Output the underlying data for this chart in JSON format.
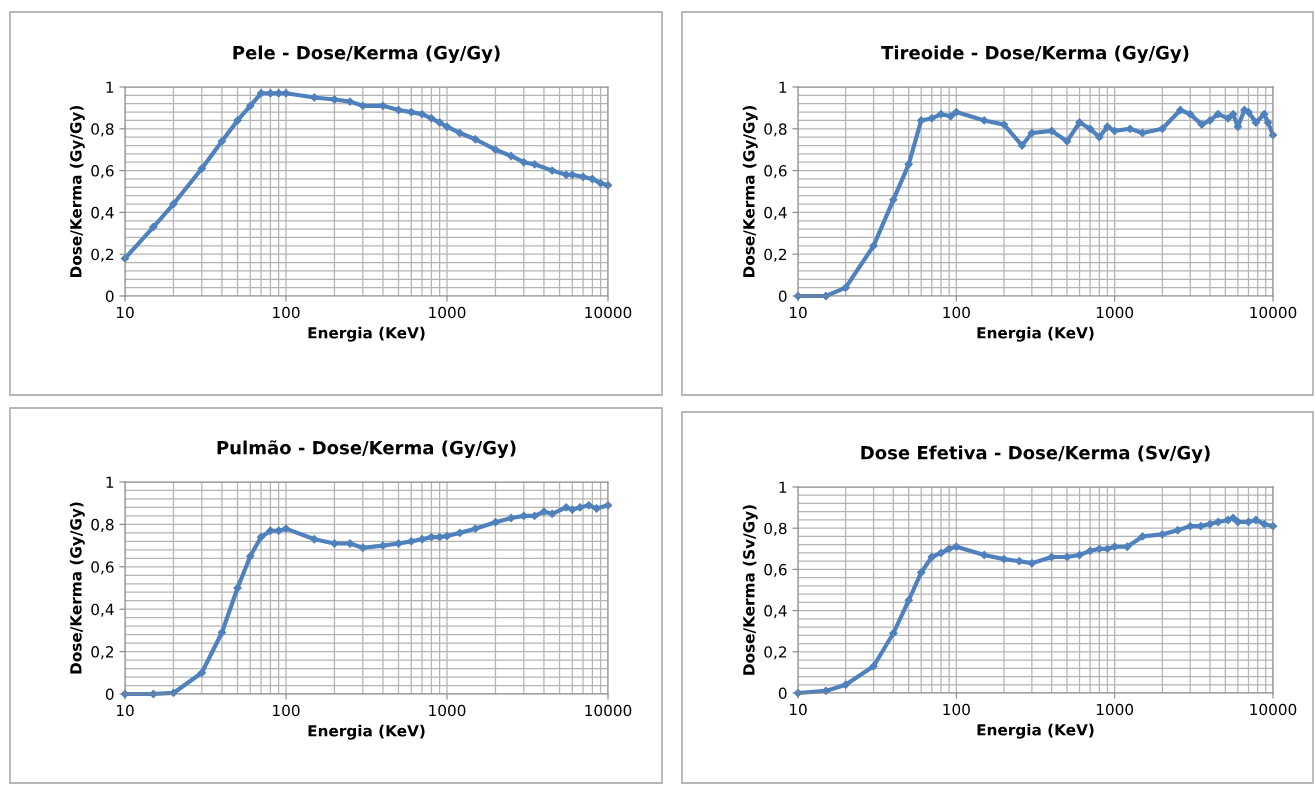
{
  "chart_data": [
    {
      "type": "line",
      "title": "Pele - Dose/Kerma (Gy/Gy)",
      "xlabel": "Energia (KeV)",
      "ylabel": "Dose/Kerma (Gy/Gy)",
      "log": "x",
      "grid": true,
      "marker": "diamond",
      "line_style": "solid",
      "xlim": [
        10,
        10000
      ],
      "ylim": [
        0,
        1
      ],
      "xticks": [
        10,
        100,
        1000,
        10000
      ],
      "yticks": [
        0,
        {
          "value": 0.2,
          "label": "0,2"
        },
        {
          "value": 0.4,
          "label": "0,4"
        },
        {
          "value": 0.6,
          "label": "0,6"
        },
        {
          "value": 0.8,
          "label": "0,8"
        },
        1
      ],
      "x": [
        10,
        15,
        20,
        30,
        40,
        50,
        60,
        70,
        80,
        90,
        100,
        150,
        200,
        250,
        300,
        400,
        500,
        600,
        700,
        800,
        900,
        1000,
        1200,
        1500,
        2000,
        2500,
        3000,
        3500,
        4500,
        5500,
        6000,
        7000,
        8000,
        9000,
        10000
      ],
      "series": [
        {
          "color": "#4f81bd",
          "values": [
            0.18,
            0.33,
            0.44,
            0.61,
            0.74,
            0.84,
            0.91,
            0.97,
            0.97,
            0.97,
            0.97,
            0.95,
            0.94,
            0.93,
            0.91,
            0.91,
            0.89,
            0.88,
            0.87,
            0.85,
            0.83,
            0.81,
            0.78,
            0.75,
            0.7,
            0.67,
            0.64,
            0.63,
            0.6,
            0.58,
            0.58,
            0.57,
            0.56,
            0.54,
            0.53
          ]
        }
      ]
    },
    {
      "type": "line",
      "title": "Tireoide - Dose/Kerma (Gy/Gy)",
      "xlabel": "Energia (KeV)",
      "ylabel": "Dose/Kerma (Gy/Gy)",
      "log": "x",
      "grid": true,
      "marker": "diamond",
      "line_style": "solid",
      "xlim": [
        10,
        10000
      ],
      "ylim": [
        0,
        1
      ],
      "xticks": [
        10,
        100,
        1000,
        10000
      ],
      "yticks": [
        0,
        {
          "value": 0.2,
          "label": "0,2"
        },
        {
          "value": 0.4,
          "label": "0,4"
        },
        {
          "value": 0.6,
          "label": "0,6"
        },
        {
          "value": 0.8,
          "label": "0,8"
        },
        1
      ],
      "x": [
        10,
        15,
        20,
        30,
        40,
        50,
        60,
        70,
        80,
        92,
        100,
        150,
        200,
        260,
        300,
        400,
        500,
        600,
        700,
        800,
        900,
        1000,
        1250,
        1500,
        2000,
        2600,
        3000,
        3550,
        4000,
        4500,
        5200,
        5600,
        6000,
        6600,
        7000,
        7800,
        8800,
        9300,
        10000
      ],
      "series": [
        {
          "color": "#4f81bd",
          "values": [
            0,
            0,
            0.04,
            0.24,
            0.46,
            0.63,
            0.84,
            0.85,
            0.87,
            0.86,
            0.88,
            0.84,
            0.82,
            0.72,
            0.78,
            0.79,
            0.74,
            0.83,
            0.8,
            0.76,
            0.81,
            0.79,
            0.8,
            0.78,
            0.8,
            0.89,
            0.87,
            0.82,
            0.84,
            0.87,
            0.85,
            0.87,
            0.81,
            0.89,
            0.88,
            0.83,
            0.87,
            0.83,
            0.77
          ]
        }
      ]
    },
    {
      "type": "line",
      "title": "Pulmão - Dose/Kerma (Gy/Gy)",
      "xlabel": "Energia (KeV)",
      "ylabel": "Dose/Kerma (Gy/Gy)",
      "log": "x",
      "grid": true,
      "marker": "diamond",
      "line_style": "solid",
      "xlim": [
        10,
        10000
      ],
      "ylim": [
        0,
        1
      ],
      "xticks": [
        10,
        100,
        1000,
        10000
      ],
      "yticks": [
        0,
        {
          "value": 0.2,
          "label": "0,2"
        },
        {
          "value": 0.4,
          "label": "0,4"
        },
        {
          "value": 0.6,
          "label": "0,6"
        },
        {
          "value": 0.8,
          "label": "0,8"
        },
        1
      ],
      "x": [
        10,
        15,
        20,
        30,
        40,
        50,
        60,
        70,
        80,
        90,
        100,
        150,
        200,
        250,
        300,
        400,
        500,
        600,
        700,
        800,
        900,
        1000,
        1200,
        1500,
        2000,
        2500,
        3000,
        3500,
        4000,
        4500,
        5500,
        6000,
        6700,
        7600,
        8500,
        10000
      ],
      "series": [
        {
          "color": "#4f81bd",
          "values": [
            0,
            0,
            0.005,
            0.1,
            0.29,
            0.5,
            0.65,
            0.74,
            0.77,
            0.77,
            0.78,
            0.73,
            0.71,
            0.71,
            0.69,
            0.7,
            0.71,
            0.72,
            0.73,
            0.74,
            0.74,
            0.745,
            0.76,
            0.78,
            0.81,
            0.83,
            0.84,
            0.84,
            0.86,
            0.85,
            0.88,
            0.87,
            0.88,
            0.89,
            0.875,
            0.89
          ]
        }
      ]
    },
    {
      "type": "line",
      "title": "Dose Efetiva - Dose/Kerma (Sv/Gy)",
      "xlabel": "Energia (KeV)",
      "ylabel": "Dose/Kerma (Sv/Gy)",
      "log": "x",
      "grid": true,
      "marker": "diamond",
      "line_style": "solid",
      "xlim": [
        10,
        10000
      ],
      "ylim": [
        0,
        1
      ],
      "xticks": [
        10,
        100,
        1000,
        10000
      ],
      "yticks": [
        0,
        {
          "value": 0.2,
          "label": "0,2"
        },
        {
          "value": 0.4,
          "label": "0,4"
        },
        {
          "value": 0.6,
          "label": "0,6"
        },
        {
          "value": 0.8,
          "label": "0,8"
        },
        1
      ],
      "x": [
        10,
        15,
        20,
        30,
        40,
        50,
        60,
        70,
        80,
        90,
        100,
        150,
        200,
        250,
        300,
        400,
        500,
        600,
        700,
        800,
        900,
        1000,
        1200,
        1500,
        2000,
        2500,
        3000,
        3500,
        4000,
        4500,
        5200,
        5600,
        6000,
        7000,
        7800,
        8800,
        10000
      ],
      "series": [
        {
          "color": "#4f81bd",
          "values": [
            0,
            0.01,
            0.04,
            0.13,
            0.29,
            0.45,
            0.585,
            0.66,
            0.68,
            0.7,
            0.71,
            0.67,
            0.65,
            0.64,
            0.63,
            0.66,
            0.66,
            0.67,
            0.69,
            0.7,
            0.7,
            0.71,
            0.71,
            0.76,
            0.77,
            0.79,
            0.81,
            0.81,
            0.82,
            0.83,
            0.84,
            0.85,
            0.83,
            0.83,
            0.84,
            0.82,
            0.81
          ]
        }
      ]
    }
  ]
}
